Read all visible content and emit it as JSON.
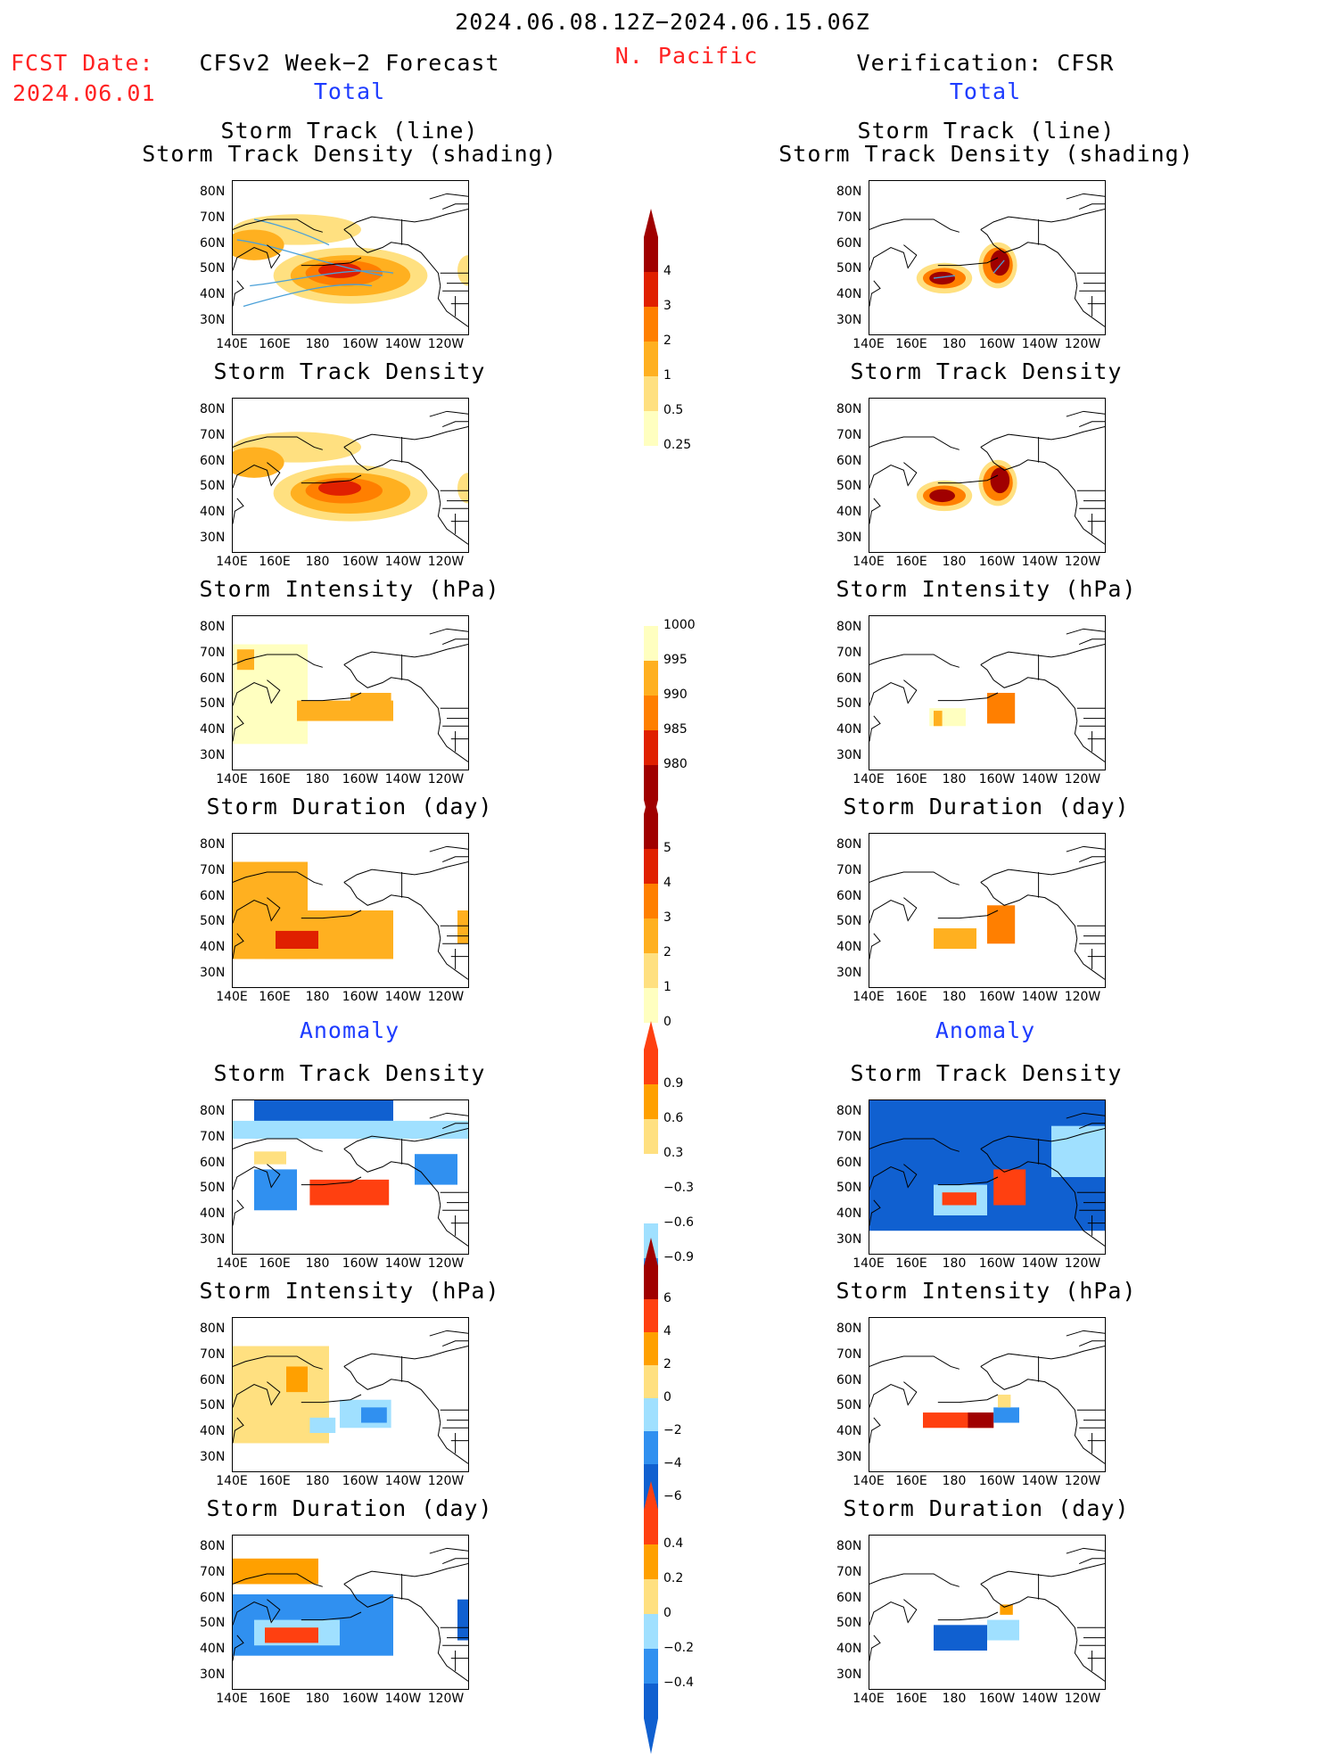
{
  "header": {
    "date_range": "2024.06.08.12Z−2024.06.15.06Z",
    "fcst_label": "FCST Date:",
    "fcst_date": "2024.06.01",
    "left_title": "CFSv2 Week−2 Forecast",
    "region": "N. Pacific",
    "right_title": "Verification: CFSR",
    "total_label": "Total",
    "anomaly_label": "Anomaly"
  },
  "panel_titles": {
    "track_line": "Storm Track (line)",
    "track_shading": "Storm Track Density (shading)",
    "density": "Storm Track Density",
    "intensity": "Storm Intensity (hPa)",
    "duration": "Storm Duration (day)"
  },
  "axes": {
    "lat_labels": [
      "80N",
      "70N",
      "60N",
      "50N",
      "40N",
      "30N"
    ],
    "lon_labels": [
      "140E",
      "160E",
      "180",
      "160W",
      "140W",
      "120W"
    ]
  },
  "colorbars": {
    "density_total": [
      "4",
      "3",
      "2",
      "1",
      "0.5",
      "0.25"
    ],
    "intensity_total": [
      "1000",
      "995",
      "990",
      "985",
      "980"
    ],
    "duration_total": [
      "5",
      "4",
      "3",
      "2",
      "1",
      "0"
    ],
    "density_anom": [
      "0.9",
      "0.6",
      "0.3",
      "−0.3",
      "−0.6",
      "−0.9"
    ],
    "intensity_anom": [
      "6",
      "4",
      "2",
      "0",
      "−2",
      "−4",
      "−6"
    ],
    "duration_anom": [
      "0.4",
      "0.2",
      "0",
      "−0.2",
      "−0.4"
    ]
  },
  "colors": {
    "total_scale": [
      "#ffffc0",
      "#ffe080",
      "#ffb020",
      "#ff7f00",
      "#e02000",
      "#a00000"
    ],
    "anom_scale": [
      "#1060d0",
      "#3090f0",
      "#a0e0ff",
      "#ffffff",
      "#ffe080",
      "#ffa000",
      "#ff4010",
      "#a00000"
    ],
    "header_red": "#ff2222",
    "header_blue": "#1e3cff",
    "track_line": "#4aa0d8"
  }
}
